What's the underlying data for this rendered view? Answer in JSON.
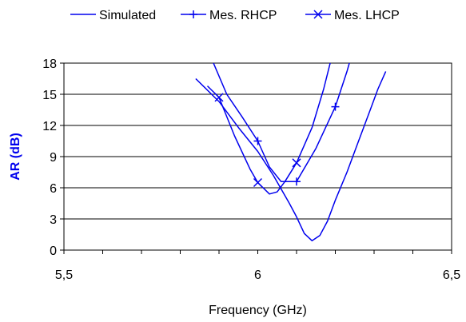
{
  "chart_data": {
    "type": "line",
    "title": "",
    "xlabel": "Frequency (GHz)",
    "ylabel": "AR (dB)",
    "xlim": [
      5.5,
      6.5
    ],
    "ylim": [
      0,
      18
    ],
    "x_ticks": [
      5.5,
      6,
      6.5
    ],
    "x_tick_labels": [
      "5,5",
      "6",
      "6,5"
    ],
    "y_ticks": [
      0,
      3,
      6,
      9,
      12,
      15,
      18
    ],
    "y_tick_labels": [
      "0",
      "3",
      "6",
      "9",
      "12",
      "15",
      "18"
    ],
    "grid": "horizontal",
    "legend_position": "top",
    "colors": {
      "series": "#0000ee",
      "ylabel": "#0000ee",
      "grid": "#000000"
    },
    "series": [
      {
        "name": "Simulated",
        "marker": "none",
        "points": [
          [
            5.84,
            16.5
          ],
          [
            5.9,
            14.3
          ],
          [
            5.95,
            11.8
          ],
          [
            6.0,
            9.5
          ],
          [
            6.04,
            7.2
          ],
          [
            6.08,
            4.6
          ],
          [
            6.1,
            3.2
          ],
          [
            6.12,
            1.6
          ],
          [
            6.14,
            0.9
          ],
          [
            6.16,
            1.4
          ],
          [
            6.18,
            2.8
          ],
          [
            6.2,
            4.8
          ],
          [
            6.23,
            7.5
          ],
          [
            6.26,
            10.5
          ],
          [
            6.29,
            13.5
          ],
          [
            6.31,
            15.5
          ],
          [
            6.33,
            17.2
          ]
        ]
      },
      {
        "name": "Mes. RHCP",
        "marker": "plus",
        "points": [
          [
            5.88,
            18.5
          ],
          [
            5.92,
            15.0
          ],
          [
            5.96,
            12.8
          ],
          [
            6.0,
            10.5
          ],
          [
            6.03,
            8.0
          ],
          [
            6.06,
            6.6
          ],
          [
            6.1,
            6.6
          ],
          [
            6.15,
            9.8
          ],
          [
            6.2,
            13.8
          ],
          [
            6.23,
            17.2
          ],
          [
            6.24,
            18.5
          ]
        ],
        "marker_points": [
          [
            6.0,
            10.5
          ],
          [
            6.1,
            6.6
          ],
          [
            6.2,
            13.8
          ]
        ]
      },
      {
        "name": "Mes. LHCP",
        "marker": "x",
        "points": [
          [
            5.87,
            15.8
          ],
          [
            5.9,
            14.7
          ],
          [
            5.94,
            11.0
          ],
          [
            5.98,
            7.8
          ],
          [
            6.0,
            6.5
          ],
          [
            6.03,
            5.4
          ],
          [
            6.05,
            5.6
          ],
          [
            6.07,
            6.6
          ],
          [
            6.1,
            8.4
          ],
          [
            6.14,
            11.8
          ],
          [
            6.17,
            15.5
          ],
          [
            6.19,
            18.5
          ]
        ],
        "marker_points": [
          [
            5.9,
            14.7
          ],
          [
            6.0,
            6.5
          ],
          [
            6.1,
            8.4
          ]
        ]
      }
    ]
  }
}
